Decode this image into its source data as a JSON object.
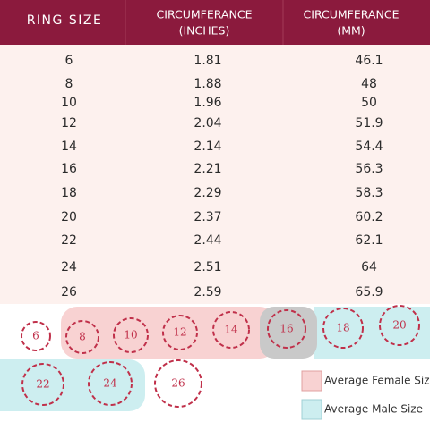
{
  "table": {
    "header": [
      [
        "RING SIZE"
      ],
      [
        "CIRCUMFERANCE",
        "(INCHES)"
      ],
      [
        "CIRCUMFERANCE",
        "(MM)"
      ]
    ],
    "rows": [
      [
        "6",
        "1.81",
        "46.1"
      ],
      [
        "8",
        "1.88",
        "48"
      ],
      [
        "10",
        "1.96",
        "50"
      ],
      [
        "12",
        "2.04",
        "51.9"
      ],
      [
        "14",
        "2.14",
        "54.4"
      ],
      [
        "16",
        "2.21",
        "56.3"
      ],
      [
        "18",
        "2.29",
        "58.3"
      ],
      [
        "20",
        "2.37",
        "60.2"
      ],
      [
        "22",
        "2.44",
        "62.1"
      ],
      [
        "24",
        "2.51",
        "64"
      ],
      [
        "26",
        "2.59",
        "65.9"
      ]
    ]
  },
  "rings": [
    "6",
    "8",
    "10",
    "12",
    "14",
    "16",
    "18",
    "20",
    "22",
    "24",
    "26"
  ],
  "legend": [
    "Average Female Size",
    "Average Male Size"
  ]
}
